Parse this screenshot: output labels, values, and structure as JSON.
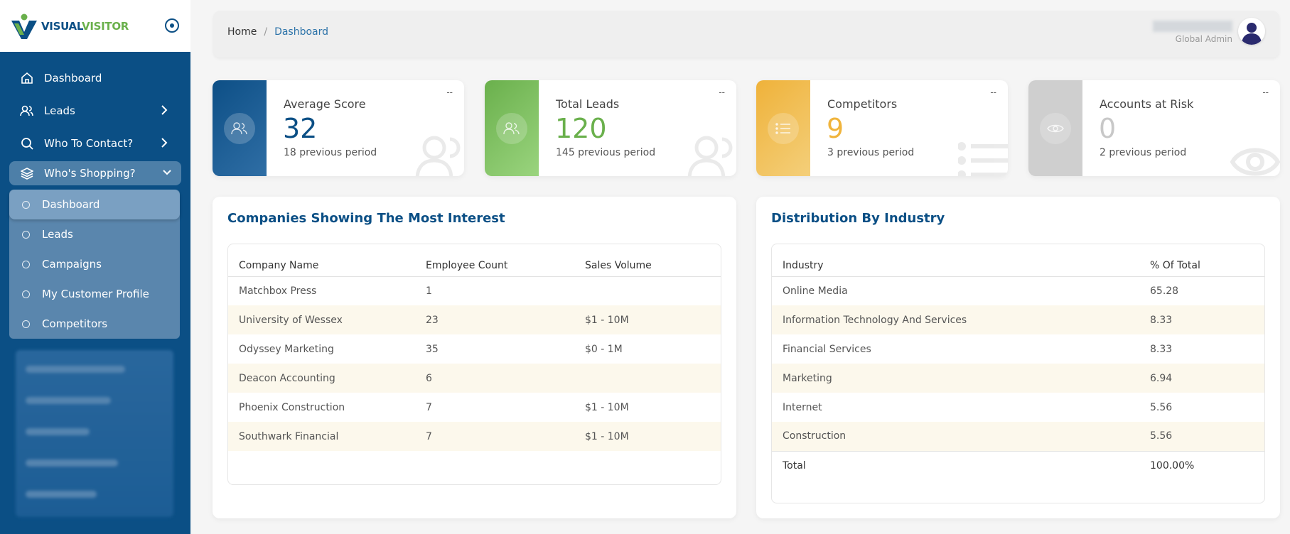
{
  "brand": {
    "part1": "VISUAL",
    "part2": "VISITOR"
  },
  "sidebar": {
    "items": [
      {
        "label": "Dashboard",
        "icon": "home-icon"
      },
      {
        "label": "Leads",
        "icon": "users-icon"
      },
      {
        "label": "Who To Contact?",
        "icon": "search-icon"
      },
      {
        "label": "Who's Shopping?",
        "icon": "layers-icon"
      }
    ],
    "subitems": [
      {
        "label": "Dashboard"
      },
      {
        "label": "Leads"
      },
      {
        "label": "Campaigns"
      },
      {
        "label": "My Customer Profile"
      },
      {
        "label": "Competitors"
      }
    ]
  },
  "header": {
    "breadcrumb": {
      "home": "Home",
      "separator": "/",
      "current": "Dashboard"
    },
    "user_role": "Global Admin"
  },
  "stats": [
    {
      "label": "Average Score",
      "value": "32",
      "previous": "18 previous period",
      "menu": "--",
      "color": "#0b4f85"
    },
    {
      "label": "Total Leads",
      "value": "120",
      "previous": "145 previous period",
      "menu": "--",
      "color": "#6ab04c"
    },
    {
      "label": "Competitors",
      "value": "9",
      "previous": "3 previous period",
      "menu": "--",
      "color": "#f0b43c"
    },
    {
      "label": "Accounts at Risk",
      "value": "0",
      "previous": "2 previous period",
      "menu": "--",
      "color": "#c8c8c8"
    }
  ],
  "companies_panel": {
    "title": "Companies Showing The Most Interest",
    "columns": [
      "Company Name",
      "Employee Count",
      "Sales Volume"
    ],
    "rows": [
      [
        "Matchbox Press",
        "1",
        ""
      ],
      [
        "University of Wessex",
        "23",
        "$1 - 10M"
      ],
      [
        "Odyssey Marketing",
        "35",
        "$0 - 1M"
      ],
      [
        "Deacon Accounting",
        "6",
        ""
      ],
      [
        "Phoenix Construction",
        "7",
        "$1 - 10M"
      ],
      [
        "Southwark Financial",
        "7",
        "$1 - 10M"
      ]
    ]
  },
  "industry_panel": {
    "title": "Distribution By Industry",
    "columns": [
      "Industry",
      "% Of Total"
    ],
    "rows": [
      [
        "Online Media",
        "65.28"
      ],
      [
        "Information Technology And Services",
        "8.33"
      ],
      [
        "Financial Services",
        "8.33"
      ],
      [
        "Marketing",
        "6.94"
      ],
      [
        "Internet",
        "5.56"
      ],
      [
        "Construction",
        "5.56"
      ]
    ],
    "total": [
      "Total",
      "100.00%"
    ]
  }
}
